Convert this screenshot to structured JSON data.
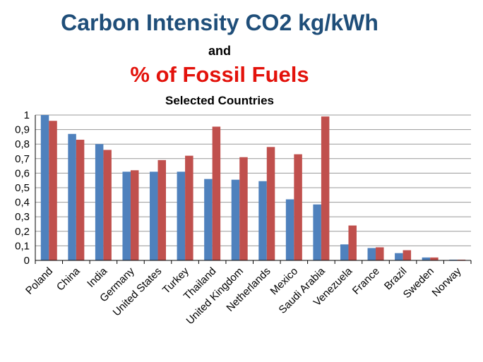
{
  "titles": {
    "line1": "Carbon Intensity CO2 kg/kWh",
    "line2": "and",
    "line3": "% of Fossil Fuels",
    "line4": "Selected Countries"
  },
  "colors": {
    "series1": "#4f81bd",
    "series2": "#c0504d",
    "grid": "#9a9a9a",
    "title_blue": "#1f4e79",
    "title_red": "#e3120b"
  },
  "chart_data": {
    "type": "bar",
    "title": "Carbon Intensity CO2 kg/kWh and % of Fossil Fuels Selected Countries",
    "categories": [
      "Poland",
      "China",
      "India",
      "Germany",
      "United States",
      "Turkey",
      "Thailand",
      "United Kingdom",
      "Netherlands",
      "Mexico",
      "Saudi Arabia",
      "Venezuela",
      "France",
      "Brazil",
      "Sweden",
      "Norway"
    ],
    "series": [
      {
        "values": [
          1.0,
          0.87,
          0.8,
          0.61,
          0.61,
          0.61,
          0.56,
          0.555,
          0.545,
          0.42,
          0.385,
          0.11,
          0.085,
          0.05,
          0.02,
          0.005
        ]
      },
      {
        "values": [
          0.96,
          0.83,
          0.76,
          0.62,
          0.69,
          0.72,
          0.92,
          0.71,
          0.78,
          0.73,
          0.99,
          0.24,
          0.09,
          0.07,
          0.02,
          0.005
        ]
      }
    ],
    "yticks": [
      "0",
      "0,1",
      "0,2",
      "0,3",
      "0,4",
      "0,5",
      "0,6",
      "0,7",
      "0,8",
      "0,9",
      "1"
    ],
    "ylim": [
      0,
      1
    ],
    "grid": true,
    "legend": "none"
  }
}
